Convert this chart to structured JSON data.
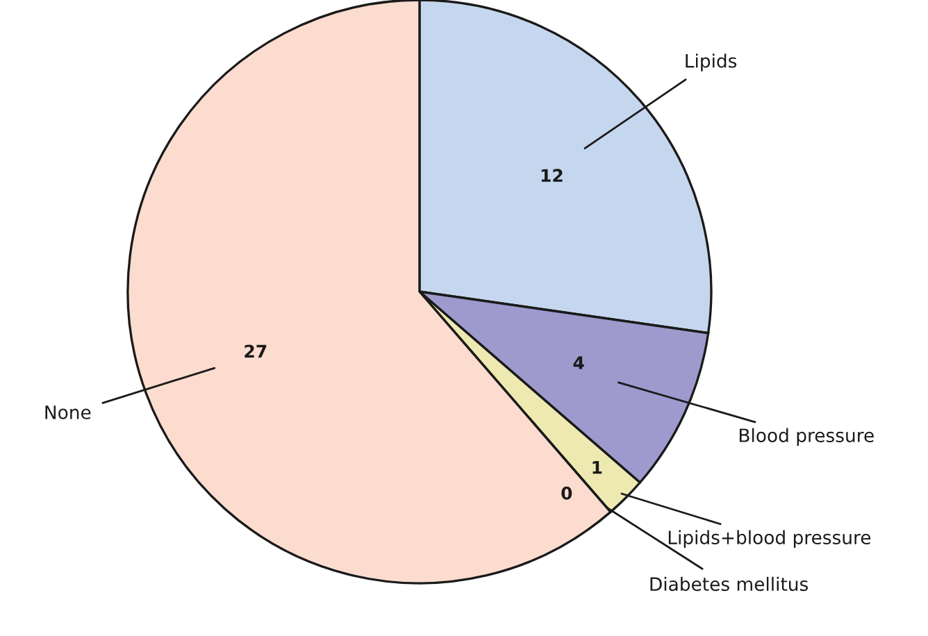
{
  "chart_data": {
    "type": "pie",
    "categories": [
      "Lipids",
      "Blood pressure",
      "Lipids+blood pressure",
      "Diabetes mellitus",
      "None"
    ],
    "values": [
      12,
      4,
      1,
      0,
      27
    ],
    "colors": [
      "#c5d7ee",
      "#9e9ace",
      "#ede9b0",
      "#1a1a1a",
      "#fcdccf"
    ],
    "value_labels": [
      "12",
      "4",
      "1",
      "0",
      "27"
    ]
  }
}
